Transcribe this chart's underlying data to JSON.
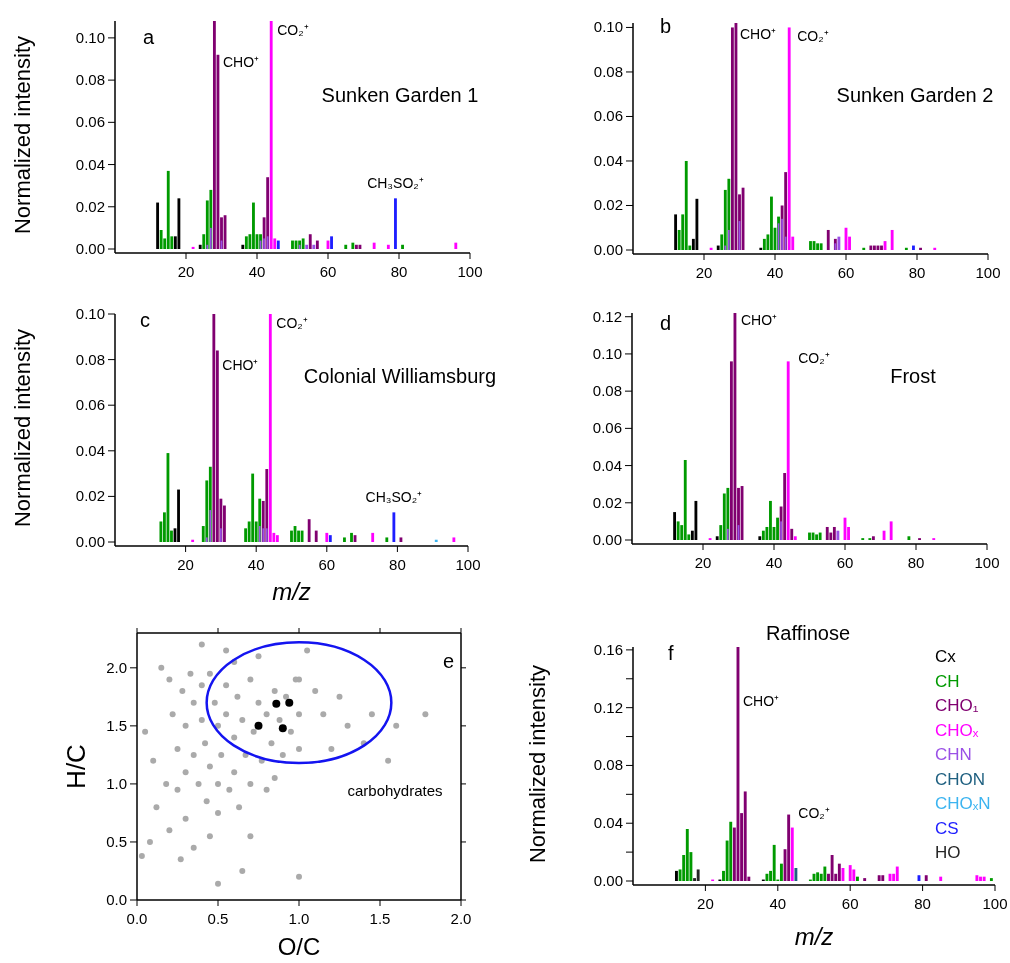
{
  "chart_data": [
    {
      "type": "bar",
      "title": "Sunken Garden 1",
      "ylabel": "Normalized intensity",
      "xlim": [
        0,
        100
      ],
      "xticks": [
        20,
        40,
        60,
        80,
        100
      ],
      "ylim": [
        0,
        0.108
      ],
      "yticks": [
        {
          "value": 0,
          "label": "0.00"
        },
        {
          "value": 0.02,
          "label": "0.02"
        },
        {
          "value": 0.04,
          "label": "0.04"
        },
        {
          "value": 0.06,
          "label": "0.06"
        },
        {
          "value": 0.08,
          "label": "0.08"
        },
        {
          "value": 0.1,
          "label": "0.10"
        }
      ],
      "annotations": [
        "a",
        {
          "text": "CHO⁺",
          "x": 29,
          "y": 0.092
        },
        {
          "text": "CO₂⁺",
          "x": 44,
          "y": 0.108
        },
        {
          "text": "CH₃SO₂⁺",
          "x": 79,
          "y": 0.024
        }
      ],
      "series": [
        {
          "color": "#000000",
          "x": [
            12,
            17,
            18,
            24,
            36
          ],
          "values": [
            0.022,
            0.006,
            0.024,
            0.002,
            0.002
          ]
        },
        {
          "color": "#009a00",
          "x": [
            13,
            14,
            15,
            16,
            25,
            26,
            27,
            37,
            38,
            39,
            40,
            41,
            50,
            51,
            52,
            53,
            65,
            67,
            81
          ],
          "values": [
            0.009,
            0.005,
            0.037,
            0.006,
            0.007,
            0.023,
            0.028,
            0.006,
            0.007,
            0.022,
            0.007,
            0.007,
            0.004,
            0.004,
            0.004,
            0.005,
            0.002,
            0.003,
            0.002
          ]
        },
        {
          "color": "#800070",
          "x": [
            28,
            29,
            30,
            31,
            42,
            43,
            55,
            57,
            68,
            69
          ],
          "values": [
            0.108,
            0.092,
            0.015,
            0.016,
            0.015,
            0.034,
            0.007,
            0.004,
            0.002,
            0.002
          ]
        },
        {
          "color": "#ff00ff",
          "x": [
            22,
            44,
            45,
            60,
            73,
            77,
            96
          ],
          "values": [
            0.001,
            0.108,
            0.005,
            0.004,
            0.003,
            0.002,
            0.003
          ]
        },
        {
          "color": "#9a50e6",
          "x": [
            26,
            27,
            30,
            41,
            42,
            43,
            52,
            54,
            56
          ],
          "values": [
            0.002,
            0.01,
            0.004,
            0.004,
            0.005,
            0.006,
            0.002,
            0.002,
            0.002
          ]
        },
        {
          "color": "#1e1eff",
          "x": [
            46,
            61,
            79
          ],
          "values": [
            0.004,
            0.006,
            0.024
          ]
        }
      ]
    },
    {
      "type": "bar",
      "title": "Sunken Garden 2",
      "xlim": [
        0,
        100
      ],
      "xticks": [
        20,
        40,
        60,
        80,
        100
      ],
      "ylim": [
        0,
        0.102
      ],
      "yticks": [
        {
          "value": 0,
          "label": "0.00"
        },
        {
          "value": 0.02,
          "label": "0.02"
        },
        {
          "value": 0.04,
          "label": "0.04"
        },
        {
          "value": 0.06,
          "label": "0.06"
        },
        {
          "value": 0.08,
          "label": "0.08"
        },
        {
          "value": 0.1,
          "label": "0.10"
        }
      ],
      "annotations": [
        "b",
        {
          "text": "CHO⁺",
          "x": 29,
          "y": 0.102
        },
        {
          "text": "CO₂⁺",
          "x": 44,
          "y": 0.1
        }
      ],
      "series": [
        {
          "color": "#000000",
          "x": [
            12,
            17,
            18,
            24,
            36
          ],
          "values": [
            0.016,
            0.005,
            0.023,
            0.002,
            0.001
          ]
        },
        {
          "color": "#009a00",
          "x": [
            13,
            14,
            15,
            16,
            25,
            26,
            27,
            37,
            38,
            39,
            40,
            41,
            50,
            51,
            52,
            53,
            65,
            77
          ],
          "values": [
            0.009,
            0.016,
            0.04,
            0.002,
            0.007,
            0.027,
            0.032,
            0.005,
            0.007,
            0.024,
            0.01,
            0.015,
            0.004,
            0.004,
            0.003,
            0.003,
            0.001,
            0.001
          ]
        },
        {
          "color": "#800070",
          "x": [
            28,
            29,
            30,
            31,
            42,
            43,
            55,
            57,
            67,
            68,
            69,
            70,
            81
          ],
          "values": [
            0.1,
            0.102,
            0.025,
            0.028,
            0.02,
            0.035,
            0.009,
            0.005,
            0.002,
            0.002,
            0.002,
            0.002,
            0.001
          ]
        },
        {
          "color": "#ff00ff",
          "x": [
            22,
            44,
            45,
            60,
            61,
            71,
            73,
            85
          ],
          "values": [
            0.001,
            0.1,
            0.006,
            0.01,
            0.006,
            0.004,
            0.009,
            0.001
          ]
        },
        {
          "color": "#9a50e6",
          "x": [
            26,
            27,
            30,
            41,
            42,
            43,
            57,
            58
          ],
          "values": [
            0.002,
            0.009,
            0.013,
            0.012,
            0.014,
            0.006,
            0.003,
            0.006
          ]
        },
        {
          "color": "#1e1eff",
          "x": [
            79
          ],
          "values": [
            0.002
          ]
        }
      ]
    },
    {
      "type": "bar",
      "title": "Colonial Williamsburg",
      "xlabel": "m/z",
      "ylabel": "Normalized intensity",
      "xlim": [
        0,
        100
      ],
      "xticks": [
        20,
        40,
        60,
        80,
        100
      ],
      "ylim": [
        0,
        0.1
      ],
      "yticks": [
        {
          "value": 0,
          "label": "0.00"
        },
        {
          "value": 0.02,
          "label": "0.02"
        },
        {
          "value": 0.04,
          "label": "0.04"
        },
        {
          "value": 0.06,
          "label": "0.06"
        },
        {
          "value": 0.08,
          "label": "0.08"
        },
        {
          "value": 0.1,
          "label": "0.10"
        }
      ],
      "annotations": [
        "c",
        {
          "text": "CHO⁺",
          "x": 29,
          "y": 0.084
        },
        {
          "text": "CO₂⁺",
          "x": 44,
          "y": 0.1
        },
        {
          "text": "CH₃SO₂⁺",
          "x": 79,
          "y": 0.013
        }
      ],
      "series": [
        {
          "color": "#009a00",
          "x": [
            13,
            14,
            15,
            16,
            25,
            26,
            27,
            37,
            38,
            39,
            40,
            41,
            50,
            51,
            52,
            53,
            65,
            67,
            77
          ],
          "values": [
            0.009,
            0.013,
            0.039,
            0.005,
            0.007,
            0.027,
            0.033,
            0.006,
            0.009,
            0.03,
            0.009,
            0.019,
            0.005,
            0.007,
            0.005,
            0.005,
            0.002,
            0.004,
            0.002
          ]
        },
        {
          "color": "#800070",
          "x": [
            28,
            29,
            30,
            31,
            42,
            43,
            55,
            57,
            68,
            81
          ],
          "values": [
            0.1,
            0.084,
            0.019,
            0.016,
            0.018,
            0.032,
            0.01,
            0.005,
            0.003,
            0.002
          ]
        },
        {
          "color": "#ff00ff",
          "x": [
            22,
            44,
            45,
            46,
            60,
            73,
            96
          ],
          "values": [
            0.001,
            0.1,
            0.004,
            0.003,
            0.004,
            0.004,
            0.002
          ]
        },
        {
          "color": "#9a50e6",
          "x": [
            26,
            27,
            30,
            41,
            42,
            43
          ],
          "values": [
            0.002,
            0.014,
            0.006,
            0.007,
            0.006,
            0.006
          ]
        },
        {
          "color": "#3cb4f0",
          "x": [
            91
          ],
          "values": [
            0.001
          ]
        },
        {
          "color": "#1e1eff",
          "x": [
            61,
            79
          ],
          "values": [
            0.003,
            0.013
          ]
        },
        {
          "color": "#000000",
          "x": [
            17,
            18
          ],
          "values": [
            0.006,
            0.023
          ]
        }
      ]
    },
    {
      "type": "bar",
      "title": "Frost",
      "xlim": [
        0,
        100
      ],
      "xticks": [
        20,
        40,
        60,
        80,
        100
      ],
      "ylim": [
        0,
        0.122
      ],
      "yticks": [
        {
          "value": 0,
          "label": "0.00"
        },
        {
          "value": 0.02,
          "label": "0.02"
        },
        {
          "value": 0.04,
          "label": "0.04"
        },
        {
          "value": 0.06,
          "label": "0.06"
        },
        {
          "value": 0.08,
          "label": "0.08"
        },
        {
          "value": 0.1,
          "label": "0.10"
        },
        {
          "value": 0.12,
          "label": "0.12"
        }
      ],
      "annotations": [
        "d",
        {
          "text": "CHO⁺",
          "x": 29,
          "y": 0.122
        },
        {
          "text": "CO₂⁺",
          "x": 44,
          "y": 0.096
        }
      ],
      "series": [
        {
          "color": "#000000",
          "x": [
            12,
            17,
            18,
            24,
            36
          ],
          "values": [
            0.015,
            0.005,
            0.021,
            0.002,
            0.002
          ]
        },
        {
          "color": "#009a00",
          "x": [
            13,
            14,
            15,
            16,
            25,
            26,
            27,
            37,
            38,
            39,
            40,
            41,
            50,
            51,
            52,
            53,
            65,
            67,
            78
          ],
          "values": [
            0.01,
            0.008,
            0.043,
            0.003,
            0.008,
            0.025,
            0.028,
            0.005,
            0.007,
            0.021,
            0.007,
            0.012,
            0.004,
            0.004,
            0.003,
            0.004,
            0.001,
            0.001,
            0.002
          ]
        },
        {
          "color": "#800070",
          "x": [
            28,
            29,
            30,
            31,
            42,
            43,
            45,
            55,
            56,
            57,
            68,
            81
          ],
          "values": [
            0.096,
            0.122,
            0.028,
            0.029,
            0.018,
            0.036,
            0.006,
            0.007,
            0.004,
            0.007,
            0.002,
            0.001
          ]
        },
        {
          "color": "#ff00ff",
          "x": [
            22,
            44,
            46,
            60,
            61,
            71,
            73,
            85
          ],
          "values": [
            0.001,
            0.096,
            0.002,
            0.012,
            0.007,
            0.005,
            0.01,
            0.001
          ]
        },
        {
          "color": "#9a50e6",
          "x": [
            27,
            30,
            42,
            58
          ],
          "values": [
            0.006,
            0.008,
            0.01,
            0.005
          ]
        }
      ]
    },
    {
      "type": "scatter",
      "xlabel": "O/C",
      "ylabel": "H/C",
      "marker": "circle",
      "xlim": [
        0,
        2
      ],
      "xticks": [
        {
          "value": 0,
          "label": "0.0"
        },
        {
          "value": 0.5,
          "label": "0.5"
        },
        {
          "value": 1,
          "label": "1.0"
        },
        {
          "value": 1.5,
          "label": "1.5"
        },
        {
          "value": 2,
          "label": "2.0"
        }
      ],
      "ylim": [
        0,
        2.3
      ],
      "yticks": [
        {
          "value": 0,
          "label": "0.0"
        },
        {
          "value": 0.5,
          "label": "0.5"
        },
        {
          "value": 1,
          "label": "1.0"
        },
        {
          "value": 1.5,
          "label": "1.5"
        },
        {
          "value": 2,
          "label": "2.0"
        }
      ],
      "annotations": [
        "e",
        "carbohydrates"
      ],
      "series": [
        {
          "color": "#aaaaaa",
          "x": [
            0.22,
            0.25,
            0.28,
            0.3,
            0.3,
            0.33,
            0.35,
            0.35,
            0.38,
            0.4,
            0.4,
            0.42,
            0.43,
            0.45,
            0.45,
            0.48,
            0.5,
            0.5,
            0.5,
            0.52,
            0.55,
            0.55,
            0.57,
            0.6,
            0.6,
            0.62,
            0.63,
            0.65,
            0.67,
            0.7,
            0.7,
            0.72,
            0.75,
            0.77,
            0.8,
            0.8,
            0.83,
            0.85,
            0.88,
            0.9,
            0.92,
            0.95,
            0.98,
            0.03,
            0.05,
            0.08,
            0.1,
            0.12,
            0.15,
            0.2,
            0.27,
            0.35,
            0.5,
            0.65,
            1.0,
            0.4,
            0.55,
            0.75,
            1.05,
            1.1,
            1.15,
            1.2,
            1.25,
            1.3,
            1.4,
            1.45,
            1.55,
            1.6,
            1.78,
            1.0,
            1.0,
            1.0,
            0.18,
            0.2,
            0.25,
            0.6,
            0.85,
            0.7,
            0.45,
            0.3
          ],
          "values": [
            1.6,
            1.3,
            1.8,
            1.5,
            1.1,
            1.95,
            1.7,
            1.25,
            1.0,
            1.85,
            1.55,
            1.35,
            0.85,
            1.15,
            1.95,
            1.7,
            1.5,
            1.0,
            0.75,
            1.25,
            1.85,
            1.6,
            0.95,
            1.4,
            1.1,
            1.75,
            0.8,
            1.55,
            1.25,
            1.9,
            1.0,
            1.45,
            1.7,
            1.2,
            1.6,
            0.95,
            1.35,
            1.8,
            1.55,
            1.25,
            1.75,
            1.45,
            1.9,
            0.38,
            1.45,
            0.5,
            1.2,
            0.8,
            2.0,
            0.6,
            0.35,
            0.45,
            0.14,
            0.25,
            0.2,
            2.2,
            2.15,
            2.1,
            2.15,
            1.8,
            1.6,
            1.3,
            1.75,
            1.5,
            1.35,
            1.6,
            1.2,
            1.5,
            1.6,
            1.6,
            1.9,
            1.3,
            1.0,
            1.9,
            0.95,
            2.05,
            1.05,
            0.55,
            0.55,
            0.7
          ]
        },
        {
          "color": "#000000",
          "x": [
            0.75,
            0.86,
            0.94,
            0.9
          ],
          "values": [
            1.5,
            1.69,
            1.7,
            1.48
          ]
        }
      ]
    },
    {
      "type": "bar",
      "title": "Raffinose",
      "xlabel": "m/z",
      "ylabel": "Normalized intensity",
      "legend": "right",
      "xlim": [
        0,
        100
      ],
      "xticks": [
        20,
        40,
        60,
        80,
        100
      ],
      "ylim": [
        0,
        0.162
      ],
      "yticks": [
        {
          "value": 0,
          "label": "0.00"
        },
        {
          "value": 0.02,
          "label": null
        },
        {
          "value": 0.04,
          "label": "0.04"
        },
        {
          "value": 0.06,
          "label": null
        },
        {
          "value": 0.08,
          "label": "0.08"
        },
        {
          "value": 0.1,
          "label": null
        },
        {
          "value": 0.12,
          "label": "0.12"
        },
        {
          "value": 0.14,
          "label": null
        },
        {
          "value": 0.16,
          "label": "0.16"
        }
      ],
      "annotations": [
        "f",
        "CHO⁺",
        {
          "text": "CO₂⁺",
          "x": 44,
          "y": 0.037
        }
      ],
      "series": [
        {
          "name": "Cx",
          "color": "#000000",
          "x": [
            12,
            24,
            36
          ],
          "values": [
            0.007,
            0.001,
            0.001
          ]
        },
        {
          "name": "CH",
          "color": "#009a00",
          "x": [
            13,
            14,
            15,
            16,
            25,
            26,
            27,
            37,
            38,
            39,
            40,
            41,
            49,
            50,
            51,
            52,
            53,
            62,
            99
          ],
          "values": [
            0.008,
            0.018,
            0.036,
            0.02,
            0.007,
            0.028,
            0.041,
            0.005,
            0.007,
            0.025,
            0.001,
            0.012,
            0.001,
            0.005,
            0.006,
            0.005,
            0.01,
            0.003,
            0.002
          ]
        },
        {
          "name": "CHO₁",
          "color": "#800070",
          "x": [
            28,
            29,
            30,
            31,
            32,
            42,
            43,
            54,
            55,
            56,
            57,
            64,
            68,
            69,
            81
          ],
          "values": [
            0.037,
            0.162,
            0.047,
            0.062,
            0.003,
            0.022,
            0.046,
            0.005,
            0.018,
            0.005,
            0.012,
            0.002,
            0.004,
            0.004,
            0.004
          ]
        },
        {
          "name": "CHOₓ",
          "color": "#ff00ff",
          "x": [
            22,
            44,
            58,
            60,
            61,
            71,
            72,
            73,
            85,
            95,
            96,
            97
          ],
          "values": [
            0.001,
            0.037,
            0.009,
            0.011,
            0.008,
            0.005,
            0.005,
            0.01,
            0.003,
            0.004,
            0.003,
            0.003
          ]
        },
        {
          "name": "CHN",
          "color": "#9a50e6"
        },
        {
          "name": "CHON",
          "color": "#1f6080",
          "x": [
            45
          ],
          "values": [
            0.009
          ]
        },
        {
          "name": "CHOₓN",
          "color": "#3cb4f0"
        },
        {
          "name": "CS",
          "color": "#1e1eff",
          "x": [
            79
          ],
          "values": [
            0.004
          ]
        },
        {
          "name": "HO",
          "color": "#262626",
          "x": [
            17,
            18
          ],
          "values": [
            0.002,
            0.008
          ]
        }
      ]
    }
  ]
}
